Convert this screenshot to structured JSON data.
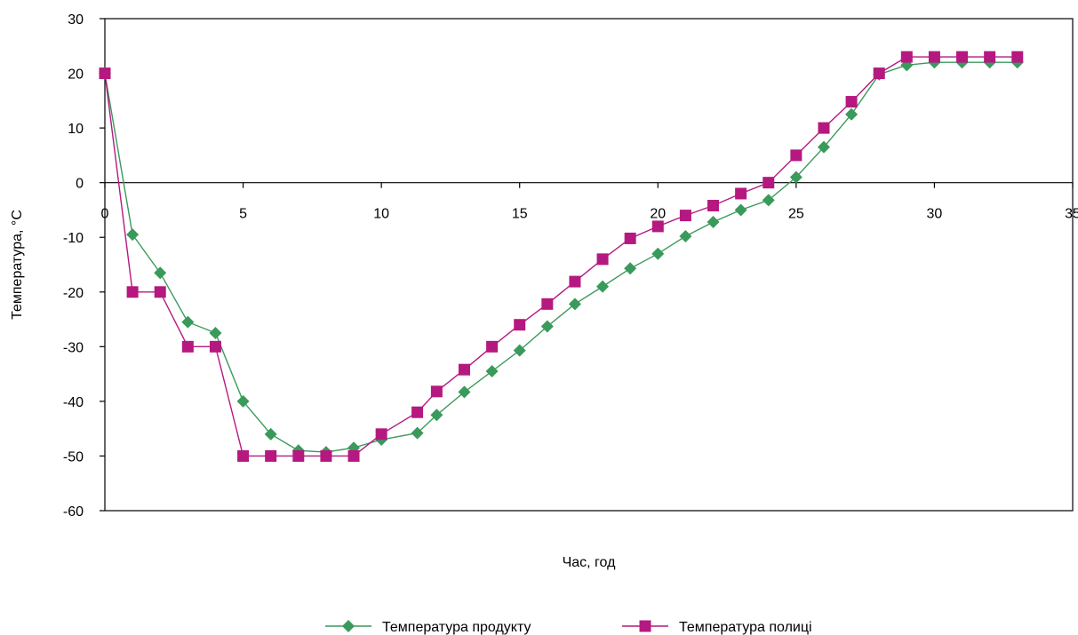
{
  "chart_data": {
    "type": "line",
    "xlabel": "Час, год",
    "ylabel": "Температура, °С",
    "xlim": [
      0,
      35
    ],
    "ylim": [
      -60,
      30
    ],
    "x_ticks": [
      0,
      5,
      10,
      15,
      20,
      25,
      30,
      35
    ],
    "y_ticks": [
      30,
      20,
      10,
      0,
      -10,
      -20,
      -30,
      -40,
      -50,
      -60
    ],
    "grid": false,
    "legend_position": "bottom",
    "series": [
      {
        "name": "Температура продукту",
        "color": "#3a9a5b",
        "marker": "diamond",
        "x": [
          0,
          1,
          2,
          3,
          4,
          5,
          6,
          7,
          8,
          9,
          10,
          11.3,
          12,
          13,
          14,
          15,
          16,
          17,
          18,
          19,
          20,
          21,
          22,
          23,
          24,
          25,
          26,
          27,
          28,
          29,
          30,
          31,
          32,
          33
        ],
        "values": [
          20,
          -9.5,
          -16.5,
          -25.5,
          -27.5,
          -40,
          -46,
          -49,
          -49.3,
          -48.5,
          -47,
          -45.8,
          -42.5,
          -38.3,
          -34.5,
          -30.7,
          -26.3,
          -22.2,
          -19,
          -15.7,
          -13,
          -9.8,
          -7.2,
          -5,
          -3.2,
          1,
          6.5,
          12.5,
          19.8,
          21.5,
          22,
          22,
          22,
          22
        ]
      },
      {
        "name": "Температура полиці",
        "color": "#b5197f",
        "marker": "square",
        "x": [
          0,
          1,
          2,
          3,
          4,
          5,
          6,
          7,
          8,
          9,
          10,
          11.3,
          12,
          13,
          14,
          15,
          16,
          17,
          18,
          19,
          20,
          21,
          22,
          23,
          24,
          25,
          26,
          27,
          28,
          29,
          30,
          31,
          32,
          33
        ],
        "values": [
          20,
          -20,
          -20,
          -30,
          -30,
          -50,
          -50,
          -50,
          -50,
          -50,
          -46,
          -42,
          -38.2,
          -34.2,
          -30,
          -26,
          -22.2,
          -18.1,
          -14,
          -10.2,
          -8,
          -6,
          -4.2,
          -2,
          0,
          5,
          10,
          14.8,
          20,
          23,
          23,
          23,
          23,
          23
        ]
      }
    ]
  }
}
